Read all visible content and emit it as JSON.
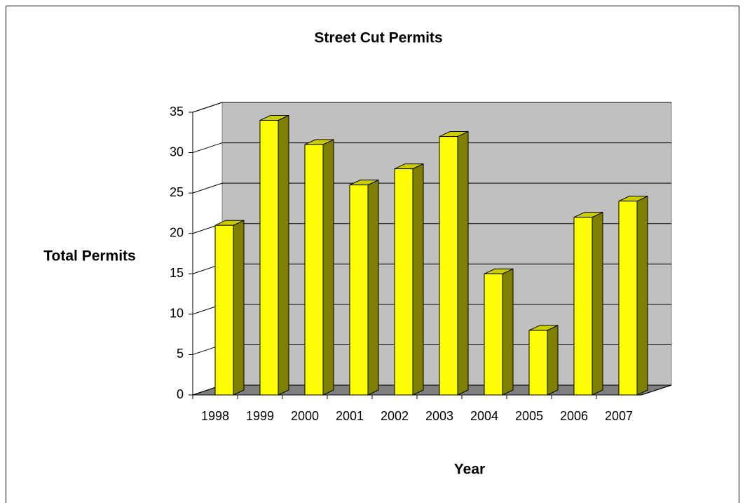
{
  "chart_data": {
    "type": "bar3d",
    "title": "Street Cut Permits",
    "x_label": "Year",
    "y_label": "Total Permits",
    "categories": [
      "1998",
      "1999",
      "2000",
      "2001",
      "2002",
      "2003",
      "2004",
      "2005",
      "2006",
      "2007"
    ],
    "values": [
      21,
      34,
      31,
      26,
      28,
      32,
      15,
      8,
      22,
      24
    ],
    "color": "#ffff00",
    "ylim": [
      0,
      35
    ],
    "yticks": [
      0,
      5,
      10,
      15,
      20,
      25,
      30,
      35
    ],
    "grid": true
  }
}
